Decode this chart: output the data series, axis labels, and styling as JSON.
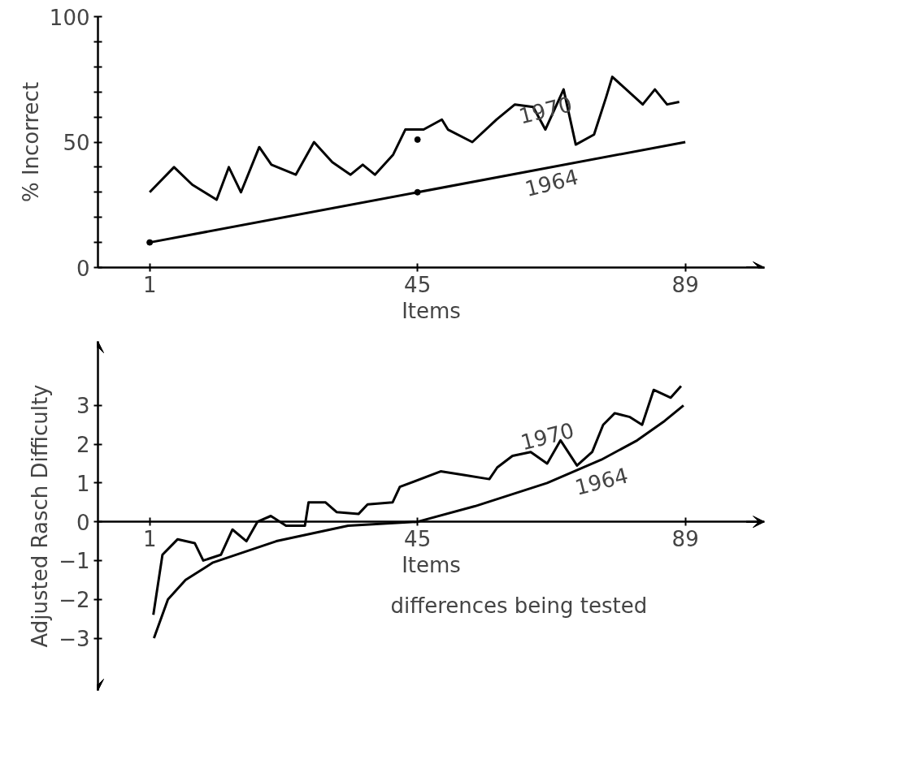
{
  "chart_data": [
    {
      "type": "line",
      "xlabel": "Items",
      "ylabel": "% Incorrect",
      "xlim": [
        -7.5,
        102
      ],
      "ylim": [
        0,
        100
      ],
      "xticks": [
        1,
        45,
        89
      ],
      "yticks": [
        0,
        {
          "value": 10,
          "label": null
        },
        {
          "value": 20,
          "label": null
        },
        {
          "value": 30,
          "label": null
        },
        {
          "value": 40,
          "label": null
        },
        50,
        {
          "value": 60,
          "label": null
        },
        {
          "value": 70,
          "label": null
        },
        {
          "value": 80,
          "label": null
        },
        {
          "value": 90,
          "label": null
        },
        100
      ],
      "series": [
        {
          "name": "1970",
          "color": "#000000",
          "x": [
            1,
            5,
            8,
            12,
            14,
            16,
            19,
            21,
            25,
            28,
            31,
            34,
            36,
            38,
            41,
            43,
            46,
            49,
            50,
            54,
            58,
            61,
            64,
            66,
            69,
            71,
            74,
            76,
            77,
            82,
            84,
            86,
            88
          ],
          "values": [
            30,
            40,
            33,
            27,
            40,
            30,
            48,
            41,
            37,
            50,
            42,
            37,
            41,
            37,
            45,
            55,
            55,
            59,
            55,
            50,
            59,
            65,
            64,
            55,
            71,
            49,
            53,
            68,
            76,
            65,
            71,
            65,
            66
          ]
        },
        {
          "name": "1964",
          "color": "#000000",
          "x": [
            1,
            89
          ],
          "values": [
            10,
            50
          ]
        },
        {
          "type": "scatter",
          "color": "#000000",
          "x": [
            1,
            45,
            45
          ],
          "values": [
            10,
            30,
            51
          ]
        }
      ]
    },
    {
      "type": "line",
      "xlabel": "Items",
      "ylabel": "Adjusted Rasch Difficulty",
      "xlim": [
        -7.5,
        102
      ],
      "ylim": [
        -4.35,
        4.65
      ],
      "xticks": [
        1,
        45,
        89
      ],
      "yticks": [
        -3,
        -2,
        -1,
        0,
        1,
        2,
        3
      ],
      "annotations": [
        "differences being tested"
      ],
      "series": [
        {
          "name": "1970",
          "color": "#000000",
          "x": [
            1.6,
            3.1,
            5.6,
            8.4,
            9.8,
            12.7,
            14.6,
            16.9,
            18.7,
            20.9,
            23.4,
            26.5,
            27.1,
            29.9,
            31.7,
            35.3,
            36.8,
            40.9,
            42.1,
            48.8,
            52.8,
            56.8,
            58.1,
            60.6,
            63.6,
            66.3,
            68.5,
            71.2,
            73.7,
            75.5,
            77.4,
            79.9,
            81.9,
            83.8,
            86.6,
            88.3
          ],
          "values": [
            -2.4,
            -0.85,
            -0.45,
            -0.55,
            -1.0,
            -0.85,
            -0.2,
            -0.5,
            0,
            0.15,
            -0.1,
            -0.1,
            0.5,
            0.5,
            0.25,
            0.2,
            0.45,
            0.5,
            0.9,
            1.3,
            1.2,
            1.1,
            1.4,
            1.7,
            1.8,
            1.5,
            2.1,
            1.45,
            1.8,
            2.5,
            2.8,
            2.7,
            2.5,
            3.4,
            3.2,
            3.5
          ]
        },
        {
          "name": "1964",
          "color": "#000000",
          "x": [
            1.7,
            4,
            6.9,
            11.4,
            21.8,
            33.6,
            45,
            54.4,
            66.3,
            75.2,
            81.1,
            85.6,
            88.7
          ],
          "values": [
            -3.0,
            -2.0,
            -1.5,
            -1.05,
            -0.5,
            -0.1,
            0,
            0.4,
            1.0,
            1.6,
            2.1,
            2.6,
            3.0
          ]
        }
      ]
    }
  ]
}
